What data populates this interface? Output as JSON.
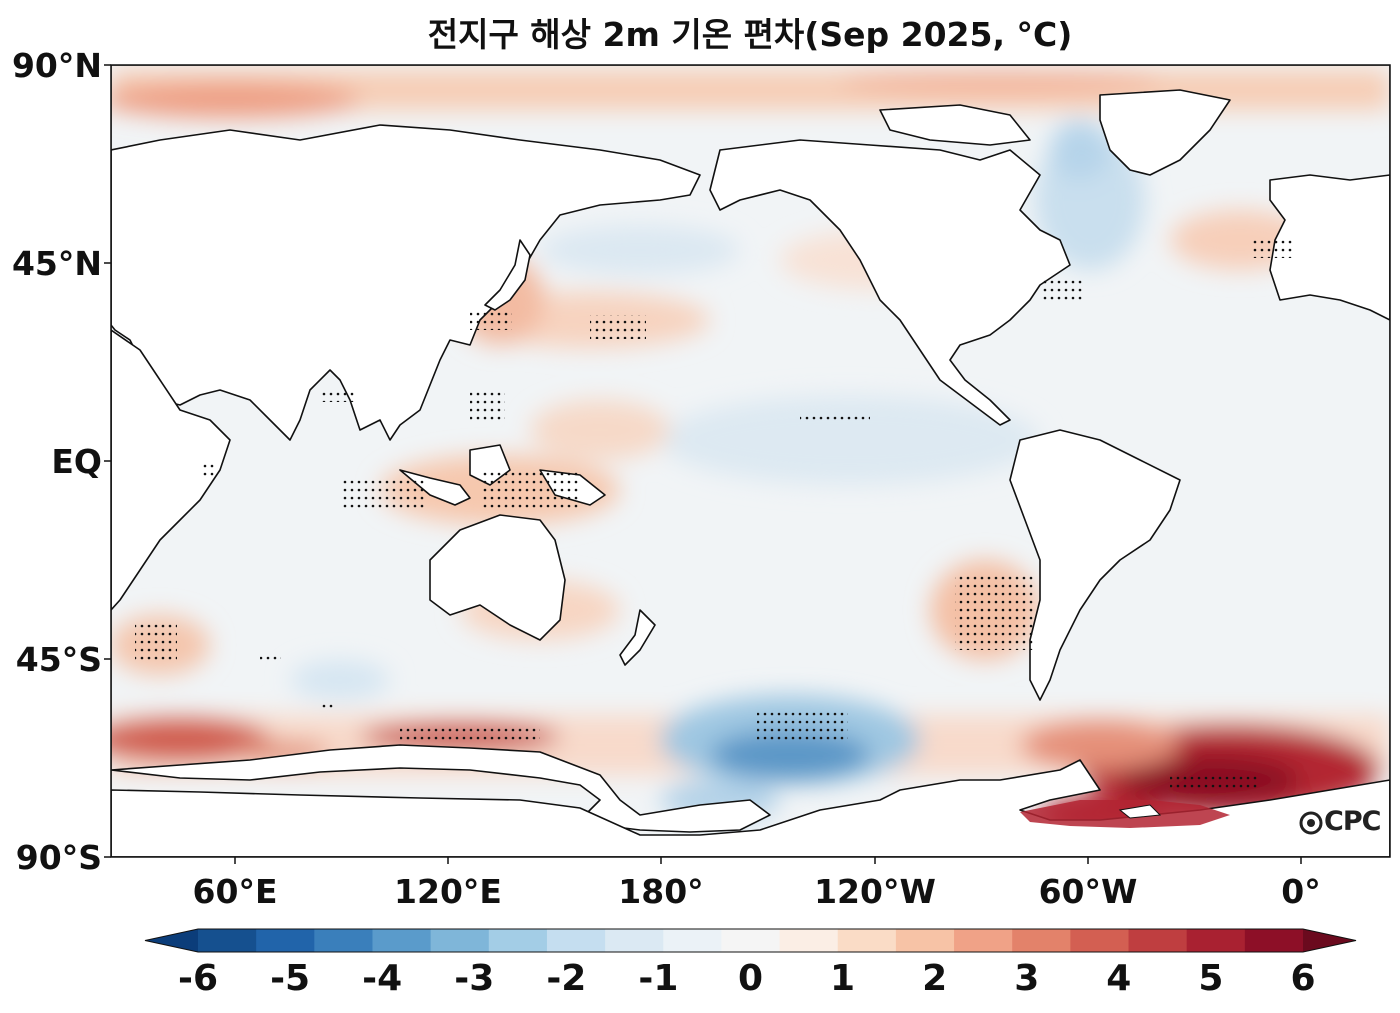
{
  "title": "전지구 해상 2m 기온 편차(Sep 2025, °C)",
  "logo_text": "CPC",
  "axes": {
    "lat_labels": [
      "90°N",
      "45°N",
      "EQ",
      "45°S",
      "90°S"
    ],
    "lon_labels": [
      "60°E",
      "120°E",
      "180°",
      "120°W",
      "60°W",
      "0°"
    ]
  },
  "colorbar": {
    "labels": [
      "-6",
      "-5",
      "-4",
      "-3",
      "-2",
      "-1",
      "0",
      "1",
      "2",
      "3",
      "4",
      "5",
      "6"
    ],
    "colors": [
      "#0b3d7a",
      "#15508f",
      "#2164aa",
      "#3a7fbb",
      "#5a9bcb",
      "#7fb6d9",
      "#a3cde6",
      "#c5def0",
      "#dbe9f3",
      "#ebf2f7",
      "#f5f5f5",
      "#fbeee5",
      "#fadcc6",
      "#f7c3a6",
      "#f0a287",
      "#e3826a",
      "#d35f52",
      "#bf3e40",
      "#a92131",
      "#8d0f27",
      "#6b0a1e"
    ]
  }
}
